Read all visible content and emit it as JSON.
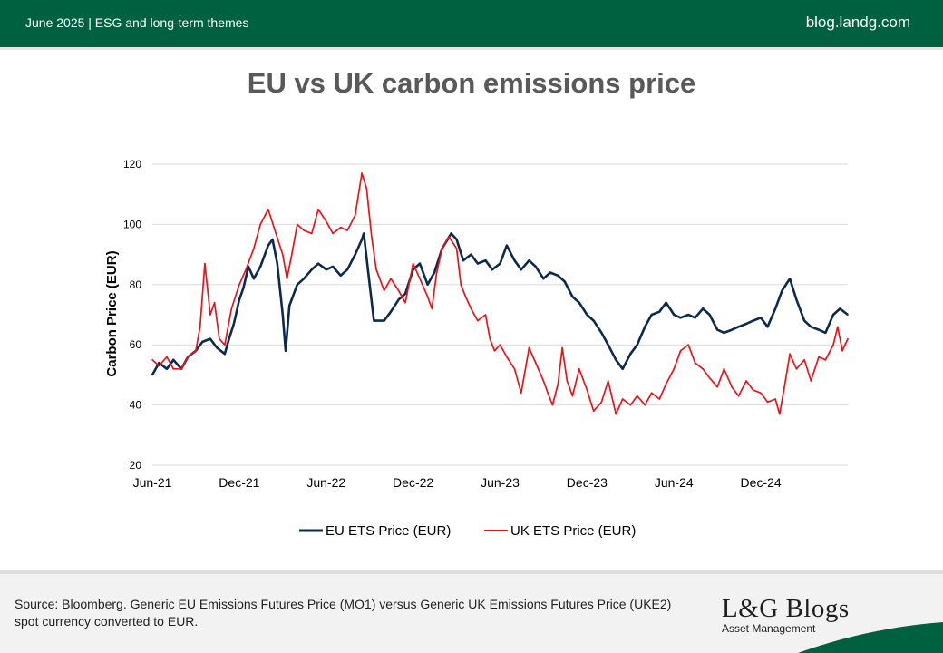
{
  "header": {
    "left_text": "June 2025 |  ESG and long-term themes",
    "right_text": "blog.landg.com",
    "background_color": "#006140"
  },
  "footer": {
    "source_line1": "Source: Bloomberg. Generic EU Emissions Futures Price (MO1) versus Generic UK Emissions Futures Price (UKE2)",
    "source_line2": "spot currency converted to EUR.",
    "brand": "L&G Blogs",
    "brand_subtitle": "Asset Management"
  },
  "chart_data": {
    "type": "line",
    "title": "EU vs UK carbon emissions price",
    "ylabel": "Carbon Price (EUR)",
    "xlabel": "",
    "ylim": [
      20,
      120
    ],
    "yticks": [
      20,
      40,
      60,
      80,
      100,
      120
    ],
    "xlim": [
      "2021-06",
      "2025-06"
    ],
    "xticks": [
      {
        "label": "Jun-21",
        "x": "2021-06"
      },
      {
        "label": "Dec-21",
        "x": "2021-12"
      },
      {
        "label": "Jun-22",
        "x": "2022-06"
      },
      {
        "label": "Dec-22",
        "x": "2022-12"
      },
      {
        "label": "Jun-23",
        "x": "2023-06"
      },
      {
        "label": "Dec-23",
        "x": "2023-12"
      },
      {
        "label": "Jun-24",
        "x": "2024-06"
      },
      {
        "label": "Dec-24",
        "x": "2024-12"
      }
    ],
    "grid": "horizontal",
    "legend_position": "bottom",
    "series": [
      {
        "name": "EU ETS Price (EUR)",
        "color": "#0d2a4d",
        "points": [
          [
            "2021-06-01",
            50
          ],
          [
            "2021-06-15",
            54
          ],
          [
            "2021-07-01",
            52
          ],
          [
            "2021-07-15",
            55
          ],
          [
            "2021-08-01",
            52
          ],
          [
            "2021-08-15",
            56
          ],
          [
            "2021-09-01",
            58
          ],
          [
            "2021-09-15",
            61
          ],
          [
            "2021-10-01",
            62
          ],
          [
            "2021-10-15",
            59
          ],
          [
            "2021-11-01",
            57
          ],
          [
            "2021-11-10",
            62
          ],
          [
            "2021-11-20",
            67
          ],
          [
            "2021-12-01",
            75
          ],
          [
            "2021-12-10",
            79
          ],
          [
            "2021-12-20",
            86
          ],
          [
            "2022-01-01",
            82
          ],
          [
            "2022-01-15",
            86
          ],
          [
            "2022-02-01",
            93
          ],
          [
            "2022-02-10",
            95
          ],
          [
            "2022-02-20",
            87
          ],
          [
            "2022-03-01",
            70
          ],
          [
            "2022-03-07",
            58
          ],
          [
            "2022-03-15",
            73
          ],
          [
            "2022-04-01",
            80
          ],
          [
            "2022-04-15",
            82
          ],
          [
            "2022-05-01",
            85
          ],
          [
            "2022-05-15",
            87
          ],
          [
            "2022-06-01",
            85
          ],
          [
            "2022-06-15",
            86
          ],
          [
            "2022-07-01",
            83
          ],
          [
            "2022-07-15",
            85
          ],
          [
            "2022-08-01",
            90
          ],
          [
            "2022-08-15",
            95
          ],
          [
            "2022-08-19",
            97
          ],
          [
            "2022-09-01",
            80
          ],
          [
            "2022-09-10",
            68
          ],
          [
            "2022-10-01",
            68
          ],
          [
            "2022-10-15",
            71
          ],
          [
            "2022-11-01",
            75
          ],
          [
            "2022-11-15",
            77
          ],
          [
            "2022-12-01",
            85
          ],
          [
            "2022-12-15",
            87
          ],
          [
            "2023-01-01",
            80
          ],
          [
            "2023-01-15",
            84
          ],
          [
            "2023-02-01",
            92
          ],
          [
            "2023-02-20",
            97
          ],
          [
            "2023-03-01",
            95
          ],
          [
            "2023-03-15",
            88
          ],
          [
            "2023-04-01",
            90
          ],
          [
            "2023-04-15",
            87
          ],
          [
            "2023-05-01",
            88
          ],
          [
            "2023-05-15",
            85
          ],
          [
            "2023-06-01",
            87
          ],
          [
            "2023-06-15",
            93
          ],
          [
            "2023-07-01",
            88
          ],
          [
            "2023-07-15",
            85
          ],
          [
            "2023-08-01",
            88
          ],
          [
            "2023-08-15",
            86
          ],
          [
            "2023-09-01",
            82
          ],
          [
            "2023-09-15",
            84
          ],
          [
            "2023-10-01",
            83
          ],
          [
            "2023-10-15",
            81
          ],
          [
            "2023-11-01",
            76
          ],
          [
            "2023-11-15",
            74
          ],
          [
            "2023-12-01",
            70
          ],
          [
            "2023-12-15",
            68
          ],
          [
            "2024-01-01",
            64
          ],
          [
            "2024-01-15",
            60
          ],
          [
            "2024-02-01",
            55
          ],
          [
            "2024-02-15",
            52
          ],
          [
            "2024-03-01",
            57
          ],
          [
            "2024-03-15",
            60
          ],
          [
            "2024-04-01",
            66
          ],
          [
            "2024-04-15",
            70
          ],
          [
            "2024-05-01",
            71
          ],
          [
            "2024-05-15",
            74
          ],
          [
            "2024-06-01",
            70
          ],
          [
            "2024-06-15",
            69
          ],
          [
            "2024-07-01",
            70
          ],
          [
            "2024-07-15",
            69
          ],
          [
            "2024-08-01",
            72
          ],
          [
            "2024-08-15",
            70
          ],
          [
            "2024-09-01",
            65
          ],
          [
            "2024-09-15",
            64
          ],
          [
            "2024-10-01",
            65
          ],
          [
            "2024-10-15",
            66
          ],
          [
            "2024-11-01",
            67
          ],
          [
            "2024-11-15",
            68
          ],
          [
            "2024-12-01",
            69
          ],
          [
            "2024-12-15",
            66
          ],
          [
            "2025-01-01",
            72
          ],
          [
            "2025-01-15",
            78
          ],
          [
            "2025-02-01",
            82
          ],
          [
            "2025-02-15",
            75
          ],
          [
            "2025-03-01",
            68
          ],
          [
            "2025-03-15",
            66
          ],
          [
            "2025-04-01",
            65
          ],
          [
            "2025-04-15",
            64
          ],
          [
            "2025-05-01",
            70
          ],
          [
            "2025-05-15",
            72
          ],
          [
            "2025-06-01",
            70
          ]
        ]
      },
      {
        "name": "UK ETS Price (EUR)",
        "color": "#e8141b",
        "points": [
          [
            "2021-06-01",
            55
          ],
          [
            "2021-06-15",
            53
          ],
          [
            "2021-07-01",
            56
          ],
          [
            "2021-07-15",
            52
          ],
          [
            "2021-08-01",
            52
          ],
          [
            "2021-08-15",
            56
          ],
          [
            "2021-09-01",
            58
          ],
          [
            "2021-09-10",
            66
          ],
          [
            "2021-09-20",
            87
          ],
          [
            "2021-10-01",
            70
          ],
          [
            "2021-10-10",
            74
          ],
          [
            "2021-10-20",
            62
          ],
          [
            "2021-11-01",
            60
          ],
          [
            "2021-11-15",
            72
          ],
          [
            "2021-12-01",
            80
          ],
          [
            "2021-12-15",
            85
          ],
          [
            "2022-01-01",
            92
          ],
          [
            "2022-01-15",
            100
          ],
          [
            "2022-02-01",
            105
          ],
          [
            "2022-02-15",
            98
          ],
          [
            "2022-03-01",
            90
          ],
          [
            "2022-03-10",
            82
          ],
          [
            "2022-03-20",
            90
          ],
          [
            "2022-04-01",
            100
          ],
          [
            "2022-04-15",
            98
          ],
          [
            "2022-05-01",
            97
          ],
          [
            "2022-05-15",
            105
          ],
          [
            "2022-06-01",
            101
          ],
          [
            "2022-06-15",
            97
          ],
          [
            "2022-07-01",
            99
          ],
          [
            "2022-07-15",
            98
          ],
          [
            "2022-08-01",
            103
          ],
          [
            "2022-08-15",
            117
          ],
          [
            "2022-08-25",
            112
          ],
          [
            "2022-09-05",
            96
          ],
          [
            "2022-09-15",
            85
          ],
          [
            "2022-10-01",
            78
          ],
          [
            "2022-10-15",
            82
          ],
          [
            "2022-11-01",
            78
          ],
          [
            "2022-11-15",
            74
          ],
          [
            "2022-12-01",
            87
          ],
          [
            "2022-12-15",
            82
          ],
          [
            "2023-01-01",
            76
          ],
          [
            "2023-01-10",
            72
          ],
          [
            "2023-01-20",
            84
          ],
          [
            "2023-02-01",
            92
          ],
          [
            "2023-02-15",
            96
          ],
          [
            "2023-03-01",
            92
          ],
          [
            "2023-03-10",
            80
          ],
          [
            "2023-03-20",
            76
          ],
          [
            "2023-04-01",
            72
          ],
          [
            "2023-04-15",
            68
          ],
          [
            "2023-05-01",
            70
          ],
          [
            "2023-05-10",
            62
          ],
          [
            "2023-05-20",
            58
          ],
          [
            "2023-06-01",
            60
          ],
          [
            "2023-06-15",
            56
          ],
          [
            "2023-07-01",
            52
          ],
          [
            "2023-07-15",
            44
          ],
          [
            "2023-08-01",
            59
          ],
          [
            "2023-08-15",
            54
          ],
          [
            "2023-09-01",
            48
          ],
          [
            "2023-09-10",
            44
          ],
          [
            "2023-09-20",
            40
          ],
          [
            "2023-10-01",
            47
          ],
          [
            "2023-10-10",
            59
          ],
          [
            "2023-10-20",
            48
          ],
          [
            "2023-11-01",
            43
          ],
          [
            "2023-11-15",
            52
          ],
          [
            "2023-12-01",
            45
          ],
          [
            "2023-12-15",
            38
          ],
          [
            "2024-01-01",
            41
          ],
          [
            "2024-01-15",
            48
          ],
          [
            "2024-02-01",
            37
          ],
          [
            "2024-02-15",
            42
          ],
          [
            "2024-03-01",
            40
          ],
          [
            "2024-03-15",
            43
          ],
          [
            "2024-04-01",
            40
          ],
          [
            "2024-04-15",
            44
          ],
          [
            "2024-05-01",
            42
          ],
          [
            "2024-05-15",
            47
          ],
          [
            "2024-06-01",
            52
          ],
          [
            "2024-06-15",
            58
          ],
          [
            "2024-07-01",
            60
          ],
          [
            "2024-07-15",
            54
          ],
          [
            "2024-08-01",
            52
          ],
          [
            "2024-08-15",
            49
          ],
          [
            "2024-09-01",
            46
          ],
          [
            "2024-09-15",
            52
          ],
          [
            "2024-10-01",
            46
          ],
          [
            "2024-10-15",
            43
          ],
          [
            "2024-11-01",
            48
          ],
          [
            "2024-11-15",
            45
          ],
          [
            "2024-12-01",
            44
          ],
          [
            "2024-12-15",
            41
          ],
          [
            "2025-01-01",
            42
          ],
          [
            "2025-01-10",
            37
          ],
          [
            "2025-01-20",
            46
          ],
          [
            "2025-02-01",
            57
          ],
          [
            "2025-02-15",
            52
          ],
          [
            "2025-03-01",
            55
          ],
          [
            "2025-03-15",
            48
          ],
          [
            "2025-04-01",
            56
          ],
          [
            "2025-04-15",
            55
          ],
          [
            "2025-05-01",
            60
          ],
          [
            "2025-05-10",
            66
          ],
          [
            "2025-05-20",
            58
          ],
          [
            "2025-06-01",
            62
          ]
        ]
      }
    ]
  }
}
